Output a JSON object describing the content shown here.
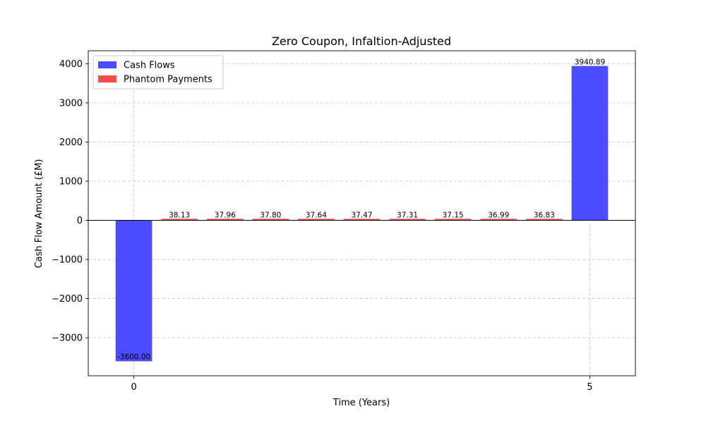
{
  "chart_data": {
    "type": "bar",
    "title": "Zero Coupon, Infaltion-Adjusted",
    "xlabel": "Time (Years)",
    "ylabel": "Cash Flow Amount (£M)",
    "xlim": [
      -0.5,
      5.5
    ],
    "ylim": [
      -3970,
      4330
    ],
    "xticks": [
      0,
      5
    ],
    "yticks": [
      -3000,
      -2000,
      -1000,
      0,
      1000,
      2000,
      3000,
      4000
    ],
    "ytick_labels": [
      "−3000",
      "−2000",
      "−1000",
      "0",
      "1000",
      "2000",
      "3000",
      "4000"
    ],
    "grid": true,
    "legend_position": "top-left",
    "series": [
      {
        "name": "Cash Flows",
        "color": "#4b4bff",
        "bar_width": 0.4,
        "x": [
          0,
          5
        ],
        "values": [
          -3600.0,
          3940.89
        ],
        "labels": [
          "-3600.00",
          "3940.89"
        ]
      },
      {
        "name": "Phantom Payments",
        "color": "#ff4b4b",
        "bar_width": 0.4,
        "x": [
          0.5,
          1.0,
          1.5,
          2.0,
          2.5,
          3.0,
          3.5,
          4.0,
          4.5
        ],
        "values": [
          38.13,
          37.96,
          37.8,
          37.64,
          37.47,
          37.31,
          37.15,
          36.99,
          36.83
        ],
        "labels": [
          "38.13",
          "37.96",
          "37.80",
          "37.64",
          "37.47",
          "37.31",
          "37.15",
          "36.99",
          "36.83"
        ]
      }
    ]
  }
}
